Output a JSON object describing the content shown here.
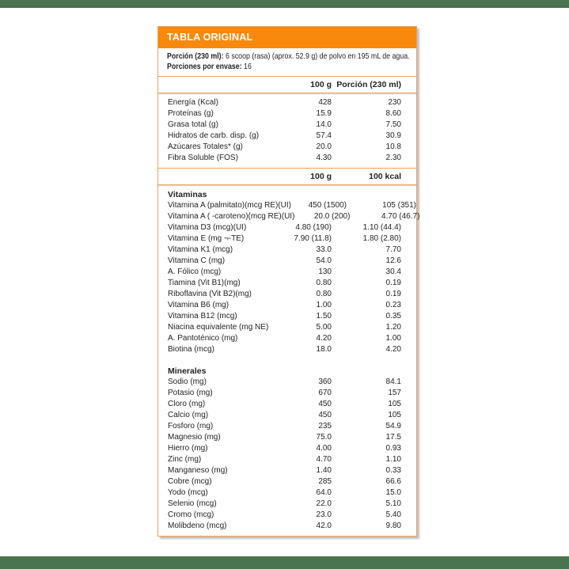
{
  "bars": {
    "color": "#4a7350"
  },
  "table": {
    "title": "TABLA ORIGINAL",
    "colors": {
      "header_bg": "#f8890d",
      "border": "#f0a05c",
      "text": "#232323"
    },
    "serving": {
      "line1_label": "Porción (230 ml):",
      "line1_text": " 6 scoop (rasa) (aprox. 52.9 g) de polvo en 195 mL de agua.",
      "line2_label": "Porciones por envase:",
      "line2_value": " 16"
    },
    "section1": {
      "col1_header": "100 g",
      "col2_header": "Porción (230 ml)",
      "rows": [
        {
          "label": "Energía (Kcal)",
          "v1": "428",
          "v2": "230"
        },
        {
          "label": "Proteínas (g)",
          "v1": "15.9",
          "v2": "8.60"
        },
        {
          "label": "Grasa total (g)",
          "v1": "14.0",
          "v2": "7.50"
        },
        {
          "label": "Hidratos de carb. disp. (g)",
          "v1": "57.4",
          "v2": "30.9"
        },
        {
          "label": "Azúcares Totales* (g)",
          "v1": "20.0",
          "v2": "10.8"
        },
        {
          "label": "Fibra Soluble (FOS)",
          "v1": "4.30",
          "v2": "2.30"
        }
      ]
    },
    "section2": {
      "col1_header": "100 g",
      "col2_header": "100 kcal",
      "vitamins_title": "Vitaminas",
      "vitamins": [
        {
          "label": "Vitamina A (palmitato)(mcg RE)(UI)",
          "v1": "450 (1500)",
          "v2": "105 (351)"
        },
        {
          "label": "Vitamina A ( -caroteno)(mcg RE)(UI)",
          "v1": "20.0 (200)",
          "v2": "4.70 (46.7)"
        },
        {
          "label": "Vitamina D3 (mcg)(UI)",
          "v1": "4.80 (190)",
          "v2": "1.10 (44.4)"
        },
        {
          "label": "Vitamina E (mg ¬-TE)",
          "v1": "7.90 (11.8)",
          "v2": "1.80 (2.80)"
        },
        {
          "label": "Vitamina K1 (mcg)",
          "v1": "33.0",
          "v2": "7.70"
        },
        {
          "label": "Vitamina C (mg)",
          "v1": "54.0",
          "v2": "12.6"
        },
        {
          "label": "A. Fólico (mcg)",
          "v1": "130",
          "v2": "30.4"
        },
        {
          "label": "Tiamina (Vit B1)(mg)",
          "v1": "0.80",
          "v2": "0.19"
        },
        {
          "label": "Riboflavina (Vit B2)(mg)",
          "v1": "0.80",
          "v2": "0.19"
        },
        {
          "label": "Vitamina B6 (mg)",
          "v1": "1.00",
          "v2": "0.23"
        },
        {
          "label": "Vitamina B12 (mcg)",
          "v1": "1.50",
          "v2": "0.35"
        },
        {
          "label": "Niacina equivalente (mg NE)",
          "v1": "5.00",
          "v2": "1.20"
        },
        {
          "label": "A. Pantoténico (mg)",
          "v1": "4.20",
          "v2": "1.00"
        },
        {
          "label": "Biotina (mcg)",
          "v1": "18.0",
          "v2": "4.20"
        }
      ],
      "minerals_title": "Minerales",
      "minerals": [
        {
          "label": "Sodio (mg)",
          "v1": "360",
          "v2": "84.1"
        },
        {
          "label": "Potasio (mg)",
          "v1": "670",
          "v2": "157"
        },
        {
          "label": "Cloro (mg)",
          "v1": "450",
          "v2": "105"
        },
        {
          "label": "Calcio (mg)",
          "v1": "450",
          "v2": "105"
        },
        {
          "label": "Fosforo (mg)",
          "v1": "235",
          "v2": "54.9"
        },
        {
          "label": "Magnesio (mg)",
          "v1": "75.0",
          "v2": "17.5"
        },
        {
          "label": "Hierro (mg)",
          "v1": "4.00",
          "v2": "0.93"
        },
        {
          "label": "Zinc (mg)",
          "v1": "4.70",
          "v2": "1.10"
        },
        {
          "label": "Manganeso (mg)",
          "v1": "1.40",
          "v2": "0.33"
        },
        {
          "label": "Cobre (mcg)",
          "v1": "285",
          "v2": "66.6"
        },
        {
          "label": "Yodo (mcg)",
          "v1": "64.0",
          "v2": "15.0"
        },
        {
          "label": "Selenio (mcg)",
          "v1": "22.0",
          "v2": "5.10"
        },
        {
          "label": "Cromo (mcg)",
          "v1": "23.0",
          "v2": "5.40"
        },
        {
          "label": "Molibdeno (mcg)",
          "v1": "42.0",
          "v2": "9.80"
        }
      ]
    }
  }
}
